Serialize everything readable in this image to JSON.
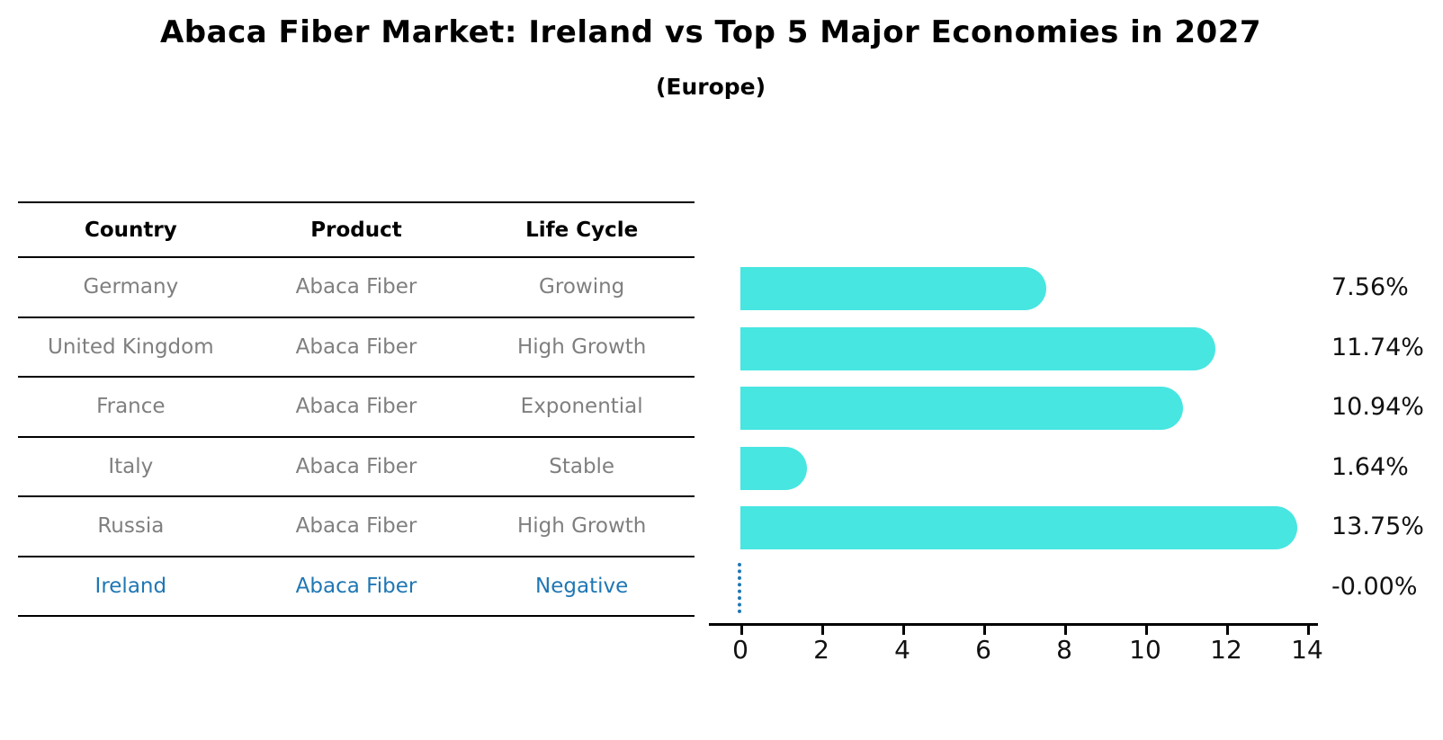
{
  "header": {
    "title": "Abaca Fiber Market: Ireland vs Top 5 Major Economies in 2027",
    "subtitle": "(Europe)"
  },
  "table": {
    "columns": [
      "Country",
      "Product",
      "Life Cycle"
    ],
    "rows": [
      {
        "country": "Germany",
        "product": "Abaca Fiber",
        "life_cycle": "Growing",
        "highlight": false
      },
      {
        "country": "United Kingdom",
        "product": "Abaca Fiber",
        "life_cycle": "High Growth",
        "highlight": false
      },
      {
        "country": "France",
        "product": "Abaca Fiber",
        "life_cycle": "Exponential",
        "highlight": false
      },
      {
        "country": "Italy",
        "product": "Abaca Fiber",
        "life_cycle": "Stable",
        "highlight": false
      },
      {
        "country": "Russia",
        "product": "Abaca Fiber",
        "life_cycle": "High Growth",
        "highlight": false
      },
      {
        "country": "Ireland",
        "product": "Abaca Fiber",
        "life_cycle": "Negative",
        "highlight": true
      }
    ]
  },
  "chart_data": {
    "type": "bar",
    "orientation": "horizontal",
    "title": "Abaca Fiber Market: Ireland vs Top 5 Major Economies in 2027",
    "subtitle": "(Europe)",
    "categories": [
      "Germany",
      "United Kingdom",
      "France",
      "Italy",
      "Russia",
      "Ireland"
    ],
    "values": [
      7.56,
      11.74,
      10.94,
      1.64,
      13.75,
      -0.0
    ],
    "value_labels": [
      "7.56%",
      "11.74%",
      "10.94%",
      "1.64%",
      "13.75%",
      "-0.00%"
    ],
    "x_ticks": [
      0,
      2,
      4,
      6,
      8,
      10,
      12,
      14
    ],
    "xlim": [
      -0.7,
      14.6
    ],
    "xlabel": "",
    "ylabel": "",
    "grid": false,
    "legend": false,
    "bar_color": "#47E6E1",
    "highlight_index": 5,
    "highlight_marker": "dotted-zero-line",
    "highlight_color": "#1f77b4",
    "text_colors": {
      "row_text": "#7f7f7f",
      "header_text": "#000000",
      "value_text": "#111111",
      "axis_text": "#111111"
    }
  }
}
